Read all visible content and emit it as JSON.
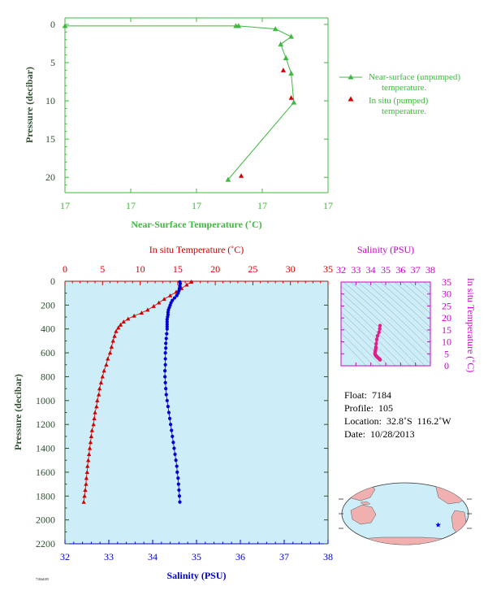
{
  "colors": {
    "green": "#3fb83f",
    "red": "#d00000",
    "blue": "#0000d0",
    "magenta": "#cc00cc",
    "axis_dark": "#2f4f2f",
    "plot_bg": "#cdeef8"
  },
  "info": {
    "float": "Float:  7184",
    "profile": "Profile:  105",
    "location": "Location:  32.8˚S  116.2˚W",
    "date": "Date:  10/28/2013"
  },
  "footer_text": "7184d105",
  "chart_data": [
    {
      "id": "near-surface",
      "type": "line",
      "xlabel": "Near-Surface Temperature (˚C)",
      "ylabel": "Pressure (decibar)",
      "x_tick_labels": [
        "17",
        "17",
        "17",
        "17",
        "17"
      ],
      "ylim": [
        0,
        22
      ],
      "y_ticks": [
        0,
        5,
        10,
        15,
        20
      ],
      "y_inverted": true,
      "x_fraction_range": [
        0,
        1
      ],
      "series": [
        {
          "name": "Near-surface (unpumped) temperature.",
          "marker": "triangle",
          "color": "#3fb83f",
          "points": [
            {
              "x": 0.0,
              "y": 0.2
            },
            {
              "x": 0.65,
              "y": 0.2
            },
            {
              "x": 0.66,
              "y": 0.2
            },
            {
              "x": 0.8,
              "y": 0.6
            },
            {
              "x": 0.86,
              "y": 1.6
            },
            {
              "x": 0.82,
              "y": 2.6
            },
            {
              "x": 0.84,
              "y": 4.4
            },
            {
              "x": 0.86,
              "y": 6.4
            },
            {
              "x": 0.87,
              "y": 10.2
            },
            {
              "x": 0.62,
              "y": 20.3
            }
          ]
        },
        {
          "name": "In situ (pumped) temperature.",
          "marker": "triangle",
          "color": "#d00000",
          "points": [
            {
              "x": 0.83,
              "y": 6.0
            },
            {
              "x": 0.86,
              "y": 9.6
            },
            {
              "x": 0.67,
              "y": 19.8
            }
          ]
        }
      ]
    },
    {
      "id": "profile",
      "type": "line",
      "ylabel": "Pressure (decibar)",
      "ylim": [
        0,
        2200
      ],
      "y_ticks": [
        0,
        200,
        400,
        600,
        800,
        1000,
        1200,
        1400,
        1600,
        1800,
        2000,
        2200
      ],
      "y_inverted": true,
      "x_top": {
        "label": "In situ Temperature (˚C)",
        "range": [
          0,
          35
        ],
        "ticks": [
          0,
          5,
          10,
          15,
          20,
          25,
          30,
          35
        ]
      },
      "x_bottom": {
        "label": "Salinity (PSU)",
        "range": [
          32,
          38
        ],
        "ticks": [
          32,
          33,
          34,
          35,
          36,
          37,
          38
        ]
      },
      "series": [
        {
          "name": "temperature",
          "marker": "triangle",
          "color": "#d00000",
          "points": [
            {
              "t": 16.8,
              "p": 5
            },
            {
              "t": 16.2,
              "p": 30
            },
            {
              "t": 15.5,
              "p": 60
            },
            {
              "t": 14.8,
              "p": 90
            },
            {
              "t": 14.0,
              "p": 120
            },
            {
              "t": 13.2,
              "p": 150
            },
            {
              "t": 12.5,
              "p": 180
            },
            {
              "t": 11.8,
              "p": 210
            },
            {
              "t": 11.0,
              "p": 240
            },
            {
              "t": 10.2,
              "p": 265
            },
            {
              "t": 9.2,
              "p": 290
            },
            {
              "t": 8.4,
              "p": 315
            },
            {
              "t": 7.8,
              "p": 340
            },
            {
              "t": 7.4,
              "p": 365
            },
            {
              "t": 7.1,
              "p": 390
            },
            {
              "t": 6.8,
              "p": 420
            },
            {
              "t": 6.6,
              "p": 460
            },
            {
              "t": 6.4,
              "p": 500
            },
            {
              "t": 6.2,
              "p": 550
            },
            {
              "t": 6.0,
              "p": 600
            },
            {
              "t": 5.7,
              "p": 650
            },
            {
              "t": 5.5,
              "p": 700
            },
            {
              "t": 5.2,
              "p": 750
            },
            {
              "t": 5.0,
              "p": 800
            },
            {
              "t": 4.8,
              "p": 850
            },
            {
              "t": 4.6,
              "p": 900
            },
            {
              "t": 4.5,
              "p": 950
            },
            {
              "t": 4.3,
              "p": 1000
            },
            {
              "t": 4.2,
              "p": 1050
            },
            {
              "t": 4.0,
              "p": 1100
            },
            {
              "t": 3.9,
              "p": 1150
            },
            {
              "t": 3.8,
              "p": 1200
            },
            {
              "t": 3.6,
              "p": 1250
            },
            {
              "t": 3.5,
              "p": 1300
            },
            {
              "t": 3.4,
              "p": 1350
            },
            {
              "t": 3.3,
              "p": 1400
            },
            {
              "t": 3.2,
              "p": 1450
            },
            {
              "t": 3.1,
              "p": 1500
            },
            {
              "t": 3.0,
              "p": 1550
            },
            {
              "t": 2.95,
              "p": 1600
            },
            {
              "t": 2.85,
              "p": 1650
            },
            {
              "t": 2.8,
              "p": 1700
            },
            {
              "t": 2.7,
              "p": 1750
            },
            {
              "t": 2.6,
              "p": 1800
            },
            {
              "t": 2.5,
              "p": 1850
            }
          ]
        },
        {
          "name": "salinity",
          "marker": "circle",
          "color": "#0000d0",
          "points": [
            {
              "s": 34.62,
              "p": 5
            },
            {
              "s": 34.63,
              "p": 20
            },
            {
              "s": 34.62,
              "p": 40
            },
            {
              "s": 34.61,
              "p": 60
            },
            {
              "s": 34.6,
              "p": 80
            },
            {
              "s": 34.58,
              "p": 100
            },
            {
              "s": 34.55,
              "p": 120
            },
            {
              "s": 34.5,
              "p": 140
            },
            {
              "s": 34.45,
              "p": 160
            },
            {
              "s": 34.42,
              "p": 180
            },
            {
              "s": 34.4,
              "p": 200
            },
            {
              "s": 34.38,
              "p": 220
            },
            {
              "s": 34.36,
              "p": 240
            },
            {
              "s": 34.35,
              "p": 260
            },
            {
              "s": 34.35,
              "p": 280
            },
            {
              "s": 34.34,
              "p": 300
            },
            {
              "s": 34.33,
              "p": 320
            },
            {
              "s": 34.33,
              "p": 340
            },
            {
              "s": 34.33,
              "p": 360
            },
            {
              "s": 34.33,
              "p": 380
            },
            {
              "s": 34.33,
              "p": 400
            },
            {
              "s": 34.32,
              "p": 440
            },
            {
              "s": 34.31,
              "p": 480
            },
            {
              "s": 34.3,
              "p": 520
            },
            {
              "s": 34.3,
              "p": 560
            },
            {
              "s": 34.29,
              "p": 600
            },
            {
              "s": 34.29,
              "p": 650
            },
            {
              "s": 34.29,
              "p": 700
            },
            {
              "s": 34.28,
              "p": 750
            },
            {
              "s": 34.28,
              "p": 800
            },
            {
              "s": 34.29,
              "p": 850
            },
            {
              "s": 34.3,
              "p": 900
            },
            {
              "s": 34.31,
              "p": 950
            },
            {
              "s": 34.33,
              "p": 1000
            },
            {
              "s": 34.35,
              "p": 1050
            },
            {
              "s": 34.37,
              "p": 1100
            },
            {
              "s": 34.39,
              "p": 1150
            },
            {
              "s": 34.41,
              "p": 1200
            },
            {
              "s": 34.43,
              "p": 1250
            },
            {
              "s": 34.45,
              "p": 1300
            },
            {
              "s": 34.47,
              "p": 1350
            },
            {
              "s": 34.49,
              "p": 1400
            },
            {
              "s": 34.51,
              "p": 1450
            },
            {
              "s": 34.53,
              "p": 1500
            },
            {
              "s": 34.55,
              "p": 1550
            },
            {
              "s": 34.56,
              "p": 1600
            },
            {
              "s": 34.58,
              "p": 1650
            },
            {
              "s": 34.59,
              "p": 1700
            },
            {
              "s": 34.6,
              "p": 1750
            },
            {
              "s": 34.61,
              "p": 1800
            },
            {
              "s": 34.62,
              "p": 1850
            }
          ]
        }
      ]
    },
    {
      "id": "ts-diagram",
      "type": "scatter",
      "xlabel": "Salinity (PSU)",
      "ylabel": "In situ Temperature (˚C)",
      "xlim": [
        32,
        38
      ],
      "ylim": [
        0,
        35
      ],
      "x_ticks": [
        32,
        33,
        34,
        35,
        36,
        37,
        38
      ],
      "y_ticks": [
        0,
        5,
        10,
        15,
        20,
        25,
        30,
        35
      ],
      "series": [
        {
          "name": "profile",
          "color": "#e0208a",
          "points": [
            {
              "s": 34.62,
              "t": 16.8
            },
            {
              "s": 34.6,
              "t": 15.5
            },
            {
              "s": 34.55,
              "t": 14.0
            },
            {
              "s": 34.45,
              "t": 12.5
            },
            {
              "s": 34.4,
              "t": 11.0
            },
            {
              "s": 34.36,
              "t": 9.2
            },
            {
              "s": 34.34,
              "t": 7.8
            },
            {
              "s": 34.33,
              "t": 7.1
            },
            {
              "s": 34.32,
              "t": 6.6
            },
            {
              "s": 34.3,
              "t": 6.0
            },
            {
              "s": 34.29,
              "t": 5.5
            },
            {
              "s": 34.28,
              "t": 5.0
            },
            {
              "s": 34.3,
              "t": 4.6
            },
            {
              "s": 34.33,
              "t": 4.3
            },
            {
              "s": 34.37,
              "t": 4.0
            },
            {
              "s": 34.41,
              "t": 3.8
            },
            {
              "s": 34.45,
              "t": 3.5
            },
            {
              "s": 34.49,
              "t": 3.3
            },
            {
              "s": 34.53,
              "t": 3.1
            },
            {
              "s": 34.56,
              "t": 2.95
            },
            {
              "s": 34.59,
              "t": 2.8
            },
            {
              "s": 34.62,
              "t": 2.5
            }
          ]
        }
      ]
    },
    {
      "id": "location-map",
      "type": "map",
      "marker": {
        "lat": -32.8,
        "lon": -116.2,
        "color": "#0000ff",
        "symbol": "star"
      }
    }
  ]
}
